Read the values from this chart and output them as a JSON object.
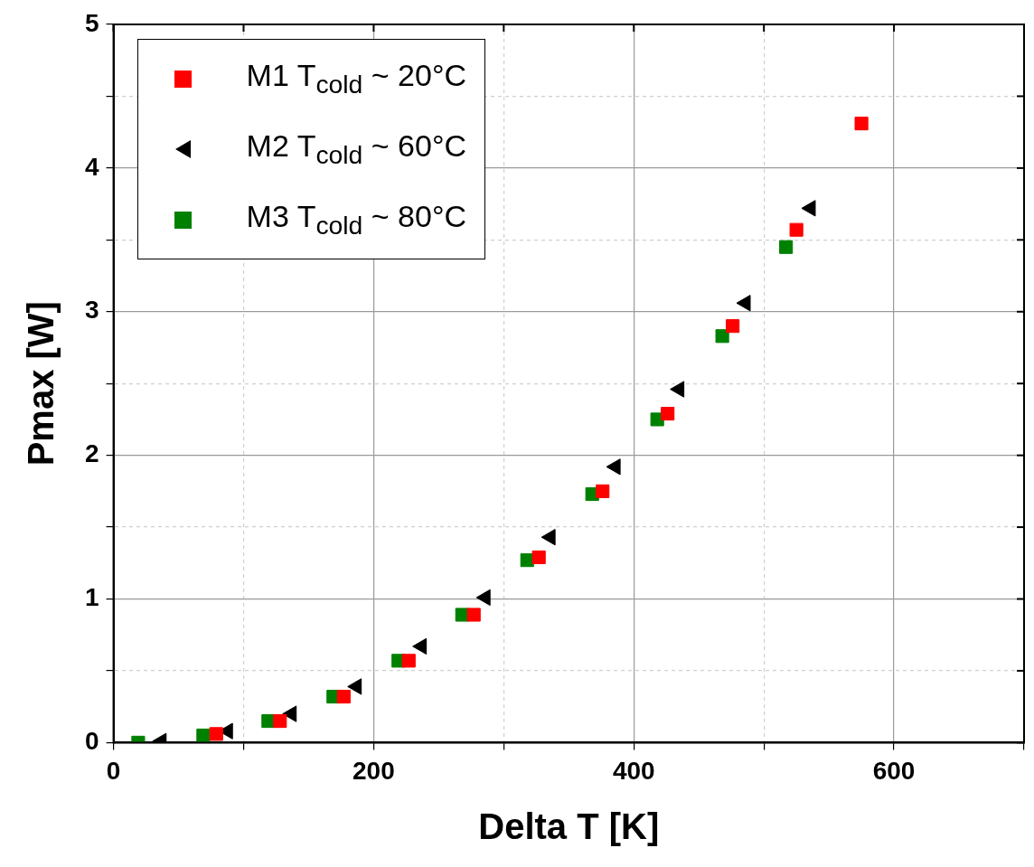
{
  "chart_data": {
    "type": "scatter",
    "xlabel": "Delta T [K]",
    "ylabel": "Pmax [W]",
    "xlim": [
      0,
      700
    ],
    "xticks": [
      0,
      {
        "value": 100,
        "label": null
      },
      200,
      {
        "value": 300,
        "label": null
      },
      400,
      {
        "value": 500,
        "label": null
      },
      600,
      {
        "value": 700,
        "label": null
      }
    ],
    "ylim": [
      0,
      5
    ],
    "yticks": [
      0,
      {
        "value": 0.5,
        "label": null
      },
      1,
      {
        "value": 1.5,
        "label": null
      },
      2,
      {
        "value": 2.5,
        "label": null
      },
      3,
      {
        "value": 3.5,
        "label": null
      },
      4,
      {
        "value": 4.5,
        "label": null
      },
      5
    ],
    "grid": true,
    "legend": "top left",
    "series": [
      {
        "name": "M1  T$_{cold}$ ~ 20°C",
        "color": "#ff0000",
        "marker": "square",
        "x": [
          79,
          128,
          177,
          227,
          277,
          327,
          376,
          426,
          476,
          525,
          575
        ],
        "values": [
          0.06,
          0.15,
          0.32,
          0.57,
          0.89,
          1.29,
          1.75,
          2.29,
          2.9,
          3.57,
          4.31
        ]
      },
      {
        "name": "M2  T$_{cold}$ ~ 60°C",
        "color": "#000000",
        "marker": "triangle",
        "x": [
          37,
          88,
          137,
          187,
          237,
          286,
          336,
          386,
          435,
          486,
          536
        ],
        "values": [
          0.01,
          0.08,
          0.2,
          0.39,
          0.67,
          1.01,
          1.43,
          1.92,
          2.46,
          3.06,
          3.72
        ]
      },
      {
        "name": "M3  T$_{cold}$ ~ 80°C",
        "color": "#008000",
        "marker": "square",
        "x": [
          19,
          69,
          119,
          169,
          219,
          268,
          318,
          368,
          418,
          468,
          517
        ],
        "values": [
          0.0,
          0.05,
          0.15,
          0.32,
          0.57,
          0.89,
          1.27,
          1.73,
          2.25,
          2.83,
          3.45
        ]
      }
    ]
  }
}
